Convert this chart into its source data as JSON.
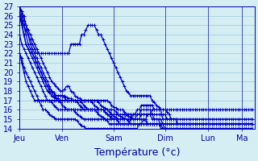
{
  "background_color": "#d4eef4",
  "plot_bg_color": "#d4eef4",
  "grid_color": "#a0c8d8",
  "line_color": "#0000cc",
  "xlabel": "Température (°c)",
  "ylim": [
    14,
    27
  ],
  "yticks": [
    14,
    15,
    16,
    17,
    18,
    19,
    20,
    21,
    22,
    23,
    24,
    25,
    26,
    27
  ],
  "day_labels": [
    "Jeu",
    "Ven",
    "Sam",
    "Dim",
    "Lun",
    "Ma"
  ],
  "day_positions": [
    0,
    20,
    44,
    68,
    88,
    104
  ],
  "marker_size": 2.5,
  "linewidth": 0.9,
  "xlabel_fontsize": 9,
  "tick_fontsize": 7,
  "tick_color": "#0000aa",
  "axis_color": "#0000aa",
  "label_color": "#0000aa",
  "n_points": 110
}
